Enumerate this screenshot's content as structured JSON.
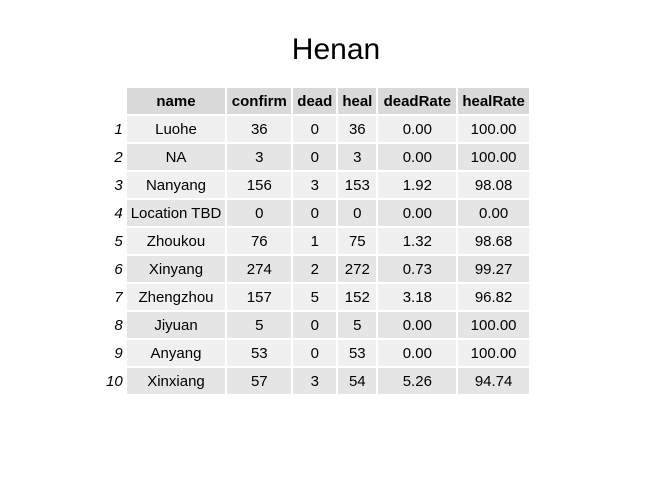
{
  "chart_data": {
    "type": "table",
    "title": "Henan",
    "columns": [
      "name",
      "confirm",
      "dead",
      "heal",
      "deadRate",
      "healRate"
    ],
    "rows": [
      {
        "index": "1",
        "cells": [
          "Luohe",
          "36",
          "0",
          "36",
          "0.00",
          "100.00"
        ]
      },
      {
        "index": "2",
        "cells": [
          "NA",
          "3",
          "0",
          "3",
          "0.00",
          "100.00"
        ]
      },
      {
        "index": "3",
        "cells": [
          "Nanyang",
          "156",
          "3",
          "153",
          "1.92",
          "98.08"
        ]
      },
      {
        "index": "4",
        "cells": [
          "Location TBD",
          "0",
          "0",
          "0",
          "0.00",
          "0.00"
        ]
      },
      {
        "index": "5",
        "cells": [
          "Zhoukou",
          "76",
          "1",
          "75",
          "1.32",
          "98.68"
        ]
      },
      {
        "index": "6",
        "cells": [
          "Xinyang",
          "274",
          "2",
          "272",
          "0.73",
          "99.27"
        ]
      },
      {
        "index": "7",
        "cells": [
          "Zhengzhou",
          "157",
          "5",
          "152",
          "3.18",
          "96.82"
        ]
      },
      {
        "index": "8",
        "cells": [
          "Jiyuan",
          "5",
          "0",
          "5",
          "0.00",
          "100.00"
        ]
      },
      {
        "index": "9",
        "cells": [
          "Anyang",
          "53",
          "0",
          "53",
          "0.00",
          "100.00"
        ]
      },
      {
        "index": "10",
        "cells": [
          "Xinxiang",
          "57",
          "3",
          "54",
          "5.26",
          "94.74"
        ]
      }
    ],
    "colors": {
      "header_bg": "#d9d9d9",
      "row_odd_bg": "#f0f0f0",
      "row_even_bg": "#e5e5e5"
    }
  }
}
